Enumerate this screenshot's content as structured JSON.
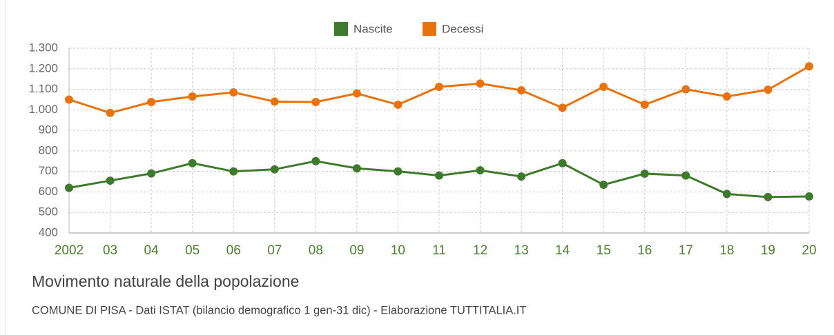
{
  "chart_data": {
    "type": "line",
    "title": "Movimento naturale della popolazione",
    "subtitle": "COMUNE DI PISA - Dati ISTAT (bilancio demografico 1 gen-31 dic) - Elaborazione TUTTITALIA.IT",
    "categories": [
      "2002",
      "03",
      "04",
      "05",
      "06",
      "07",
      "08",
      "09",
      "10",
      "11",
      "12",
      "13",
      "14",
      "15",
      "16",
      "17",
      "18",
      "19",
      "20"
    ],
    "series": [
      {
        "name": "Nascite",
        "color": "#3d7a2c",
        "values": [
          620,
          655,
          690,
          740,
          700,
          710,
          750,
          715,
          700,
          680,
          705,
          675,
          740,
          635,
          689,
          680,
          590,
          575,
          578
        ]
      },
      {
        "name": "Decessi",
        "color": "#e8730c",
        "values": [
          1050,
          985,
          1038,
          1065,
          1085,
          1040,
          1038,
          1080,
          1025,
          1112,
          1128,
          1095,
          1010,
          1112,
          1025,
          1100,
          1065,
          1098,
          1212
        ]
      }
    ],
    "ylim": [
      400,
      1300
    ],
    "yticks": [
      400,
      500,
      600,
      700,
      800,
      900,
      {
        "value": 1000,
        "label": "1.000"
      },
      {
        "value": 1100,
        "label": "1.100"
      },
      {
        "value": 1200,
        "label": "1.200"
      },
      {
        "value": 1300,
        "label": "1.300"
      }
    ],
    "grid": true,
    "legend": "top"
  }
}
